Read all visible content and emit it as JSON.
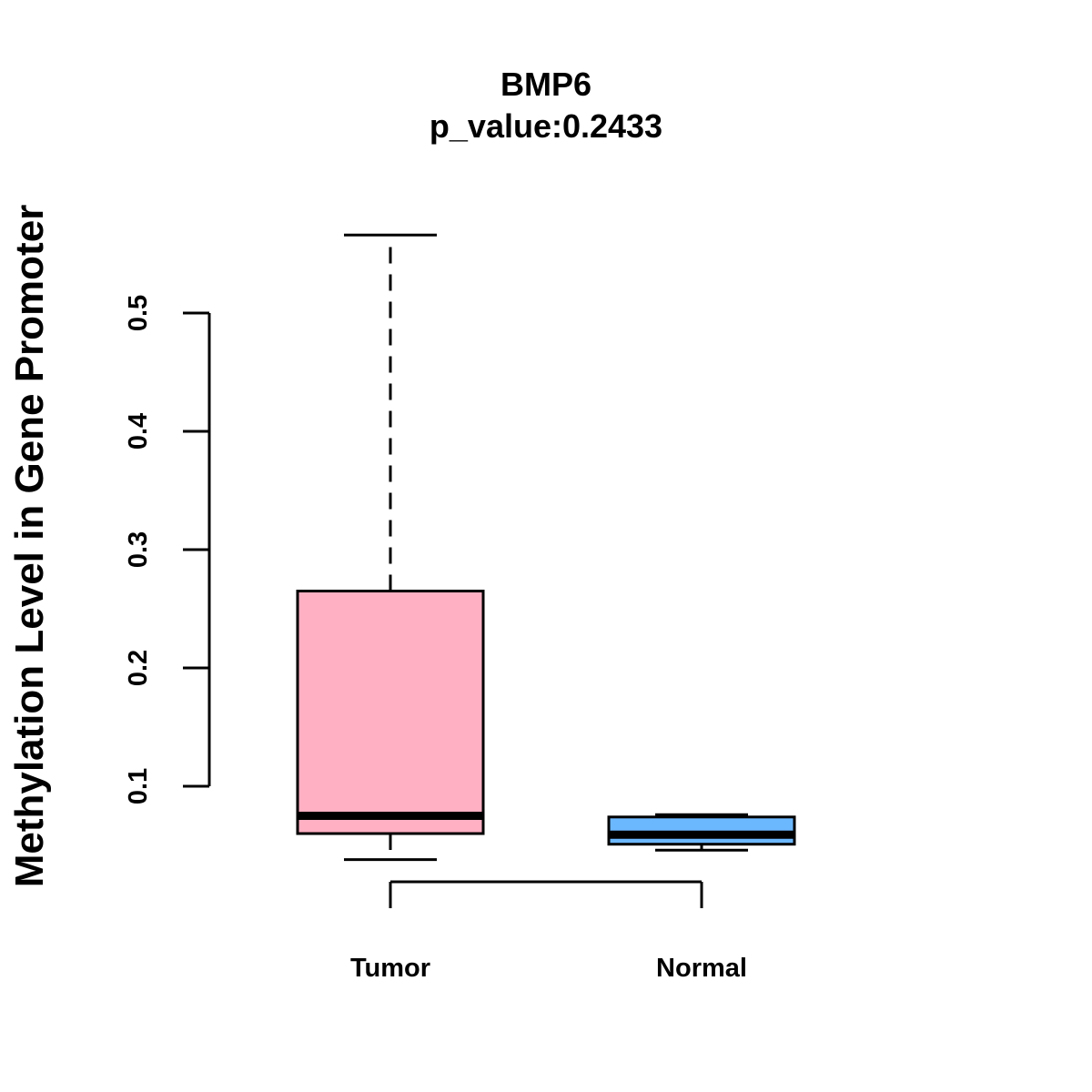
{
  "chart_data": {
    "type": "boxplot",
    "title": "BMP6",
    "subtitle": "p_value:0.2433",
    "xlabel": "",
    "ylabel": "Methylation Level in Gene Promoter",
    "y_ticks": [
      0.1,
      0.2,
      0.3,
      0.4,
      0.5
    ],
    "y_tick_labels": [
      "0.1",
      "0.2",
      "0.3",
      "0.4",
      "0.5"
    ],
    "categories": [
      "Tumor",
      "Normal"
    ],
    "series": [
      {
        "name": "Tumor",
        "color": "#FFB0C3",
        "whisker_low": 0.038,
        "q1": 0.06,
        "median": 0.075,
        "q3": 0.265,
        "whisker_high": 0.566
      },
      {
        "name": "Normal",
        "color": "#6CB8FF",
        "whisker_low": 0.046,
        "q1": 0.051,
        "median": 0.059,
        "q3": 0.074,
        "whisker_high": 0.076
      }
    ],
    "grid": false,
    "legend": "none"
  }
}
